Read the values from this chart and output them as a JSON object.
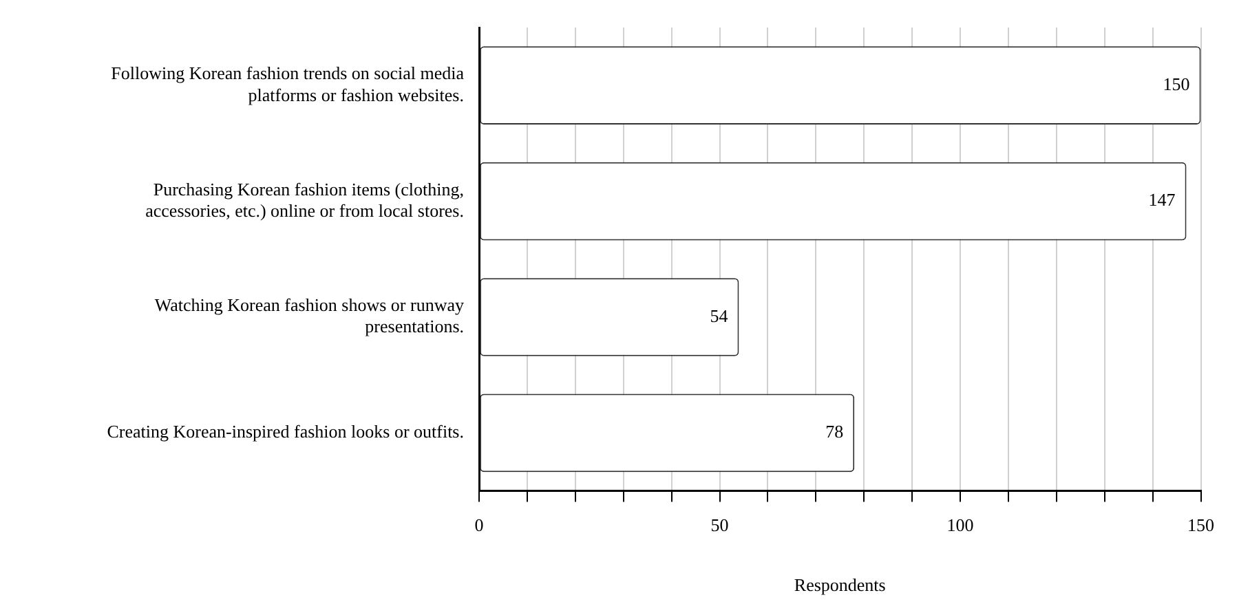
{
  "chart_data": {
    "type": "bar",
    "orientation": "horizontal",
    "xlabel": "Respondents",
    "categories": [
      "Following Korean fashion trends on social media platforms or fashion websites.",
      "Purchasing Korean fashion items (clothing, accessories, etc.) online or from local stores.",
      "Watching Korean fashion shows or runway presentations.",
      "Creating Korean-inspired fashion looks or outfits."
    ],
    "values": [
      150,
      147,
      54,
      78
    ],
    "color": "#ffffff",
    "data_labels": true,
    "grid": "x",
    "legend": false,
    "xlim": [
      0,
      150
    ],
    "xticks": [
      0,
      {
        "value": 10,
        "label": null
      },
      {
        "value": 20,
        "label": null
      },
      {
        "value": 30,
        "label": null
      },
      {
        "value": 40,
        "label": null
      },
      50,
      {
        "value": 60,
        "label": null
      },
      {
        "value": 70,
        "label": null
      },
      {
        "value": 80,
        "label": null
      },
      {
        "value": 90,
        "label": null
      },
      100,
      {
        "value": 110,
        "label": null
      },
      {
        "value": 120,
        "label": null
      },
      {
        "value": 130,
        "label": null
      },
      {
        "value": 140,
        "label": null
      },
      150
    ]
  }
}
